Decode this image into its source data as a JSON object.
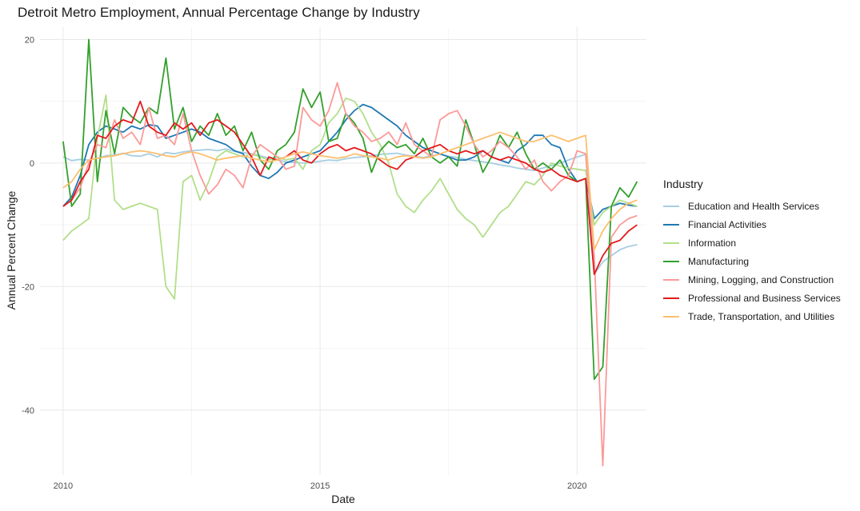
{
  "chart_data": {
    "type": "line",
    "title": "Detroit Metro Employment, Annual Percentage Change by Industry",
    "xlabel": "Date",
    "ylabel": "Annual Percent Change",
    "x_ticks": [
      "2010",
      "2015",
      "2020"
    ],
    "y_ticks": [
      "20",
      "0",
      "-20",
      "-40"
    ],
    "xlim": [
      2009.55,
      2021.35
    ],
    "ylim": [
      -50.5,
      22
    ],
    "grid": true,
    "legend_title": "Industry",
    "legend_position": "right",
    "x_start": 2010.0,
    "x_step_years": 0.1667,
    "series": [
      {
        "name": "Education and Health Services",
        "color": "#a6cee3",
        "values": [
          1.0,
          0.4,
          0.6,
          0.5,
          0.8,
          1.2,
          1.3,
          1.6,
          1.2,
          1.1,
          1.5,
          1.0,
          1.7,
          1.5,
          1.8,
          2.0,
          2.1,
          2.2,
          2.0,
          2.3,
          1.9,
          1.7,
          1.5,
          1.2,
          0.8,
          0.5,
          0.2,
          0.1,
          0.0,
          0.1,
          0.3,
          0.5,
          0.4,
          0.7,
          0.9,
          1.0,
          1.2,
          1.4,
          1.5,
          1.6,
          1.3,
          1.1,
          0.9,
          1.2,
          1.4,
          1.1,
          0.9,
          0.6,
          0.4,
          0.2,
          0.0,
          -0.3,
          -0.5,
          -0.8,
          -1.0,
          -1.2,
          -0.8,
          -0.4,
          0.0,
          0.5,
          1.0,
          1.4,
          -18,
          -16,
          -15,
          -14,
          -13.5,
          -13.2
        ]
      },
      {
        "name": "Financial Activities",
        "color": "#1f78b4",
        "values": [
          -7.0,
          -5.5,
          -2.0,
          3.0,
          5.0,
          6.0,
          5.5,
          5.0,
          6.0,
          5.5,
          6.2,
          6.0,
          4.0,
          4.5,
          5.0,
          5.5,
          5.0,
          4.0,
          3.5,
          3.0,
          2.0,
          1.5,
          -0.5,
          -2.0,
          -2.5,
          -1.5,
          0.0,
          0.5,
          1.0,
          1.5,
          2.0,
          3.5,
          5.0,
          7.0,
          8.5,
          9.5,
          9.0,
          8.0,
          7.0,
          6.0,
          4.5,
          3.5,
          2.5,
          2.0,
          1.5,
          1.0,
          0.5,
          0.5,
          1.0,
          2.0,
          1.0,
          0.5,
          0.0,
          2.0,
          3.0,
          4.5,
          4.5,
          3.0,
          2.5,
          -1.0,
          -3.0,
          -2.5,
          -9.0,
          -7.5,
          -7.0,
          -6.5,
          -6.8,
          -7.0
        ]
      },
      {
        "name": "Information",
        "color": "#b2df8a",
        "values": [
          -12.5,
          -11.0,
          -10.0,
          -9.0,
          4.0,
          11.0,
          -6.0,
          -7.5,
          -7.0,
          -6.5,
          -7.0,
          -7.5,
          -20.0,
          -22.0,
          -3.0,
          -2.0,
          -6.0,
          -3.0,
          1.0,
          2.0,
          1.5,
          1.0,
          1.5,
          1.0,
          0.5,
          1.0,
          0.5,
          0.8,
          -1.0,
          2.0,
          3.0,
          6.5,
          8.0,
          10.5,
          10.0,
          8.0,
          5.0,
          3.0,
          0.0,
          -5.0,
          -7.0,
          -8.0,
          -6.0,
          -4.5,
          -2.5,
          -5.0,
          -7.5,
          -9.0,
          -10.0,
          -12.0,
          -10.0,
          -8.0,
          -7.0,
          -5.0,
          -3.0,
          -3.5,
          -2.0,
          0.0,
          -0.5,
          -0.8,
          -1.0,
          -1.2,
          -10.0,
          -8.0,
          -7.0,
          -6.0,
          -6.5,
          -7.0
        ]
      },
      {
        "name": "Manufacturing",
        "color": "#33a02c",
        "values": [
          3.5,
          -7.0,
          -5.0,
          20.0,
          -3.0,
          8.5,
          1.5,
          9.0,
          7.5,
          6.5,
          9.0,
          8.0,
          17.0,
          5.5,
          9.0,
          3.5,
          6.0,
          4.5,
          8.0,
          4.5,
          6.0,
          2.0,
          5.0,
          0.5,
          -1.0,
          2.0,
          3.0,
          5.0,
          12.0,
          9.0,
          11.5,
          3.5,
          4.0,
          8.0,
          6.5,
          4.0,
          -1.5,
          2.0,
          3.5,
          2.5,
          3.0,
          1.5,
          4.0,
          1.0,
          0.0,
          1.0,
          -0.5,
          7.0,
          3.0,
          -1.5,
          1.0,
          4.5,
          2.5,
          5.0,
          1.5,
          -1.0,
          0.0,
          -1.0,
          0.5,
          -2.0,
          -3.0,
          -2.5,
          -35.0,
          -33.0,
          -7.0,
          -4.0,
          -5.5,
          -3.0
        ]
      },
      {
        "name": "Mining, Logging, and Construction",
        "color": "#fb9a99",
        "values": [
          -7.0,
          -6.0,
          -4.0,
          0.0,
          3.0,
          2.5,
          7.0,
          4.0,
          5.0,
          3.0,
          9.0,
          4.0,
          4.5,
          3.0,
          8.0,
          2.0,
          -2.0,
          -5.0,
          -3.5,
          -1.0,
          -2.0,
          -4.0,
          1.0,
          3.0,
          2.0,
          1.0,
          -1.0,
          -0.5,
          9.0,
          7.0,
          6.0,
          8.5,
          13.0,
          8.0,
          6.0,
          5.0,
          3.5,
          4.0,
          5.0,
          3.0,
          6.5,
          3.0,
          2.0,
          1.0,
          7.0,
          8.0,
          8.5,
          6.0,
          3.0,
          1.0,
          2.0,
          3.5,
          2.5,
          1.0,
          -1.0,
          0.5,
          -3.0,
          -4.5,
          -3.0,
          -2.0,
          2.0,
          1.5,
          -15.0,
          -49.0,
          -12.0,
          -10.0,
          -9.0,
          -8.5
        ]
      },
      {
        "name": "Professional and Business Services",
        "color": "#e31a1c",
        "values": [
          -7.0,
          -6.0,
          -3.0,
          -1.0,
          4.5,
          4.0,
          6.0,
          7.0,
          6.5,
          10.0,
          6.0,
          5.0,
          4.5,
          6.5,
          5.5,
          6.5,
          4.5,
          6.5,
          7.0,
          6.0,
          5.0,
          3.0,
          1.0,
          -2.0,
          1.0,
          0.5,
          1.0,
          2.0,
          0.5,
          0.0,
          1.5,
          2.5,
          3.0,
          2.0,
          2.5,
          2.0,
          1.5,
          0.5,
          -0.5,
          -1.0,
          0.5,
          1.0,
          2.0,
          2.5,
          3.0,
          2.0,
          1.5,
          2.0,
          1.5,
          2.0,
          1.0,
          0.5,
          1.0,
          0.5,
          0.0,
          -1.0,
          -1.5,
          -1.0,
          -2.0,
          -2.5,
          -3.0,
          -2.5,
          -18.0,
          -15.0,
          -13.0,
          -12.5,
          -11.0,
          -10.0
        ]
      },
      {
        "name": "Trade, Transportation, and Utilities",
        "color": "#fdbf6f",
        "values": [
          -4.0,
          -3.0,
          -1.0,
          0.5,
          0.8,
          1.0,
          1.2,
          1.5,
          1.8,
          2.0,
          1.8,
          1.5,
          1.2,
          1.0,
          1.5,
          1.8,
          1.5,
          1.0,
          0.5,
          0.8,
          1.0,
          1.2,
          0.8,
          0.5,
          0.2,
          0.5,
          1.0,
          1.5,
          1.8,
          1.5,
          1.2,
          1.0,
          0.8,
          1.0,
          1.5,
          1.2,
          1.0,
          0.8,
          0.5,
          1.0,
          1.2,
          1.0,
          0.8,
          1.0,
          1.5,
          2.0,
          2.5,
          3.0,
          3.5,
          4.0,
          4.5,
          5.0,
          4.5,
          4.0,
          3.5,
          3.5,
          4.0,
          4.5,
          4.0,
          3.5,
          4.0,
          4.5,
          -14.0,
          -11.0,
          -9.0,
          -7.5,
          -6.5,
          -6.0
        ]
      }
    ]
  }
}
